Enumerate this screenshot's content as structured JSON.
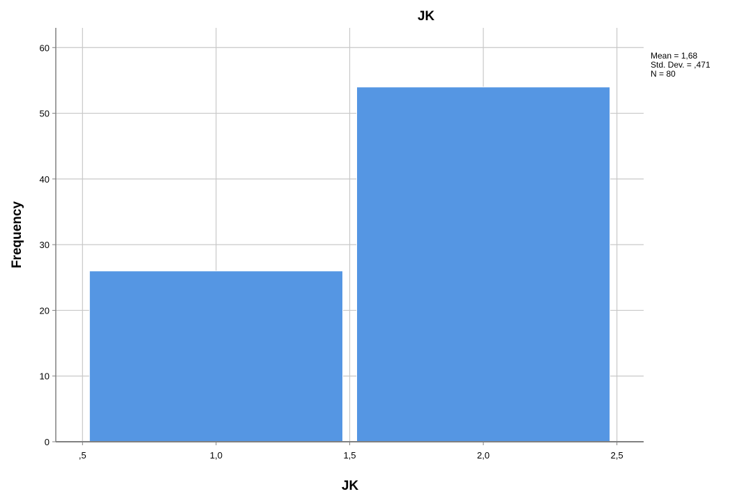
{
  "chart_data": {
    "type": "bar",
    "title": "JK",
    "xlabel": "JK",
    "ylabel": "Frequency",
    "xlim": [
      0.4,
      2.6
    ],
    "ylim": [
      0,
      63
    ],
    "x_ticks": [
      0.5,
      1.0,
      1.5,
      2.0,
      2.5
    ],
    "x_tick_labels": [
      ",5",
      "1,0",
      "1,5",
      "2,0",
      "2,5"
    ],
    "y_ticks": [
      0,
      10,
      20,
      30,
      40,
      50,
      60
    ],
    "y_tick_labels": [
      "0",
      "10",
      "20",
      "30",
      "40",
      "50",
      "60"
    ],
    "bins": [
      {
        "x0": 0.5,
        "x1": 1.5,
        "value": 26
      },
      {
        "x0": 1.5,
        "x1": 2.5,
        "value": 54
      }
    ],
    "grid": true,
    "bar_color": "#5596e3",
    "stats": {
      "mean": "Mean = 1,68",
      "std_dev": "Std. Dev. = ,471",
      "n": "N = 80"
    }
  }
}
